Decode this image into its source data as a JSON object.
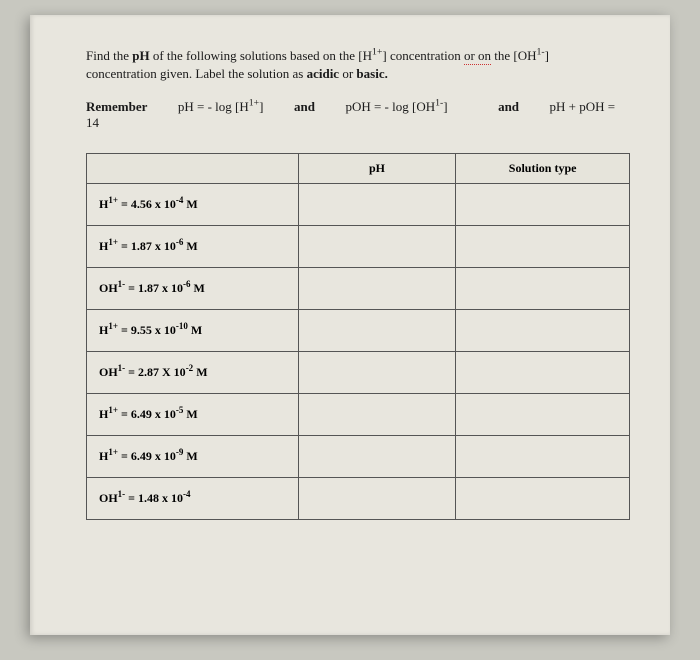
{
  "instructions": {
    "line1_prefix": "Find the ",
    "line1_bold1": "pH",
    "line1_mid1": " of the following solutions based on the [H",
    "line1_sup1": "1+",
    "line1_mid2": "] concentration ",
    "line1_underline1": "or on",
    "line1_mid3": " the [OH",
    "line1_sup2": "1-",
    "line1_end": "]",
    "line2_prefix": "concentration given.  Label the solution as ",
    "line2_bold1": "acidic",
    "line2_mid": " or ",
    "line2_bold2": "basic.",
    "line2_end": ""
  },
  "formulas": {
    "remember": "Remember",
    "f1_a": "pH = - log [H",
    "f1_sup": "1+",
    "f1_b": "]",
    "and1": "and",
    "f2_a": "pOH",
    "f2_b": " = - log [OH",
    "f2_sup": "1-",
    "f2_c": "]",
    "and2": "and",
    "f3": "pH + pOH = 14"
  },
  "table": {
    "headers": {
      "ph": "pH",
      "type": "Solution type"
    },
    "rows": [
      {
        "species": "H",
        "charge": "1+",
        "eq": " = 4.56 x 10",
        "exp": "-4",
        "unit": " M"
      },
      {
        "species": "H",
        "charge": "1+",
        "eq": " = 1.87 x 10",
        "exp": "-6",
        "unit": " M"
      },
      {
        "species": "OH",
        "charge": "1-",
        "eq": " = 1.87 x 10",
        "exp": "-6",
        "unit": " M"
      },
      {
        "species": "H",
        "charge": "1+",
        "eq": " = 9.55 x 10",
        "exp": "-10",
        "unit": " M"
      },
      {
        "species": "OH",
        "charge": "1-",
        "eq": " = 2.87 X 10",
        "exp": "-2",
        "unit": " M"
      },
      {
        "species": "H",
        "charge": "1+",
        "eq": " = 6.49 x 10",
        "exp": "-5",
        "unit": " M"
      },
      {
        "species": "H",
        "charge": "1+",
        "eq": " = 6.49 x 10",
        "exp": "-9",
        "unit": " M"
      },
      {
        "species": "OH",
        "charge": "1-",
        "eq": " = 1.48 x 10",
        "exp": "-4",
        "unit": ""
      }
    ]
  }
}
